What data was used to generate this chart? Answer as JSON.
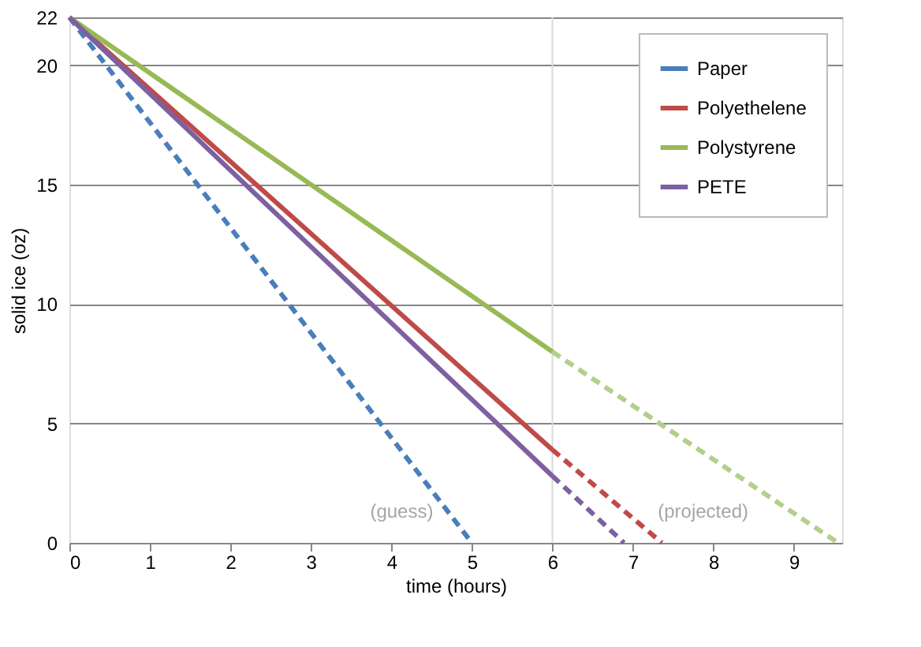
{
  "chart_data": {
    "type": "line",
    "xlabel": "time (hours)",
    "ylabel": "solid ice (oz)",
    "xlim": [
      0,
      9.6
    ],
    "xticks": [
      0,
      1,
      2,
      3,
      4,
      5,
      6,
      7,
      8,
      9
    ],
    "ylim": [
      0,
      22
    ],
    "yticks": [
      0,
      5,
      10,
      15,
      20,
      22
    ],
    "grid": "y",
    "legend": "top right",
    "marker": "none",
    "series": [
      {
        "name": "Paper",
        "color": "#4a7ebb",
        "x": [
          0,
          5
        ],
        "values": [
          22,
          0
        ],
        "line_style": "dashed"
      },
      {
        "name": "Polyethelene",
        "color": "#be4b48",
        "x": [
          0,
          6
        ],
        "values": [
          22,
          3.9
        ],
        "line_style": "solid"
      },
      {
        "name": "Polystyrene",
        "color": "#98b954",
        "x": [
          0,
          6
        ],
        "values": [
          22,
          8
        ],
        "line_style": "solid"
      },
      {
        "name": "PETE",
        "color": "#7d60a0",
        "x": [
          0,
          6
        ],
        "values": [
          22,
          2.8
        ],
        "line_style": "solid"
      },
      {
        "color": "#be4b48",
        "x": [
          6,
          7.36
        ],
        "values": [
          3.9,
          0
        ],
        "line_style": "dashed"
      },
      {
        "color": "#b3cf8a",
        "x": [
          6,
          9.55
        ],
        "values": [
          8,
          0
        ],
        "line_style": "dashed"
      },
      {
        "color": "#7d60a0",
        "x": [
          6,
          6.89
        ],
        "values": [
          2.8,
          0
        ],
        "line_style": "dashed"
      }
    ],
    "ref_lines": [
      {
        "axis": "x",
        "value": 6,
        "color": "#d9d9d9"
      }
    ],
    "annotations": [
      "(guess)",
      "(projected)"
    ]
  }
}
